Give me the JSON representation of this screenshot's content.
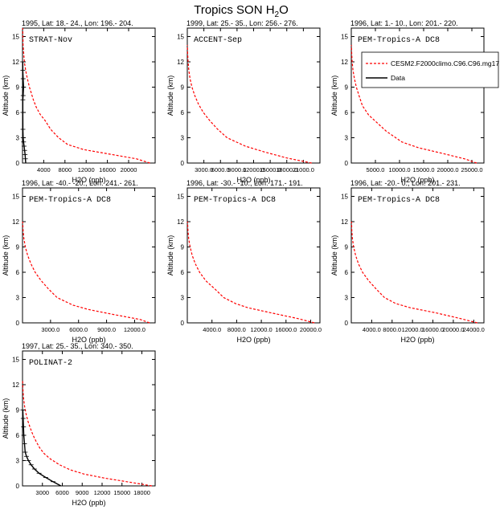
{
  "title": "Tropics SON H",
  "title_sub": "2",
  "title_tail": "O",
  "colors": {
    "model": "#ff0000",
    "obs": "#000000",
    "axis": "#000000"
  },
  "legend": {
    "model": "CESM2.F2000climo.C96.C96.mg17",
    "obs": "Data"
  },
  "chart_data": [
    {
      "type": "line",
      "header": "1995, Lat: 18.- 24., Lon: 196.- 204.",
      "campaign": "STRAT-Nov",
      "xlabel": "H2O (ppb)",
      "ylabel": "Altitude (km)",
      "xlim": [
        0,
        25000
      ],
      "ylim": [
        0,
        16
      ],
      "xticks": [
        4000,
        8000,
        12000,
        16000,
        20000
      ],
      "xtick_labels": [
        "4000",
        "8000",
        "12000",
        "16000",
        "20000"
      ],
      "yticks": [
        0,
        3,
        6,
        9,
        12,
        15
      ],
      "series": [
        {
          "name": "CESM2.F2000climo.C96.C96.mg17",
          "x": [
            24000,
            21500,
            16000,
            11500,
            8500,
            6800,
            5300,
            4300,
            3300,
            2600,
            2050,
            1650,
            1300,
            1000,
            740,
            540,
            400,
            280,
            160,
            110,
            90,
            60,
            40
          ],
          "y": [
            0,
            0.5,
            1.1,
            1.6,
            2.2,
            3.0,
            4.0,
            5.0,
            5.8,
            6.6,
            7.5,
            8.3,
            9.0,
            9.8,
            10.5,
            11.2,
            11.8,
            12.6,
            13.5,
            14.0,
            14.8,
            15.5,
            16
          ]
        },
        {
          "name": "Data",
          "x": [
            600,
            550,
            480,
            400,
            300,
            200,
            120,
            80,
            60,
            60,
            120,
            200,
            120,
            60,
            40
          ],
          "y": [
            0,
            0.5,
            1.0,
            1.5,
            2.0,
            2.5,
            3.0,
            4.0,
            6.0,
            7.5,
            8.0,
            9.0,
            10.0,
            11.0,
            12.0
          ]
        }
      ]
    },
    {
      "type": "line",
      "header": "1999, Lat: 25.- 35., Lon: 256.- 276.",
      "campaign": "ACCENT-Sep",
      "xlabel": "H2O (ppb)",
      "ylabel": "Altitude (km)",
      "xlim": [
        0,
        24000
      ],
      "ylim": [
        0,
        16
      ],
      "xticks": [
        3000,
        6000,
        9000,
        12000,
        15000,
        18000,
        21000
      ],
      "xtick_labels": [
        "3000.0",
        "6000.0",
        "9000.0",
        "12000.0",
        "15000.0",
        "18000.0",
        "21000.0"
      ],
      "yticks": [
        0,
        3,
        6,
        9,
        12,
        15
      ],
      "series": [
        {
          "name": "CESM2.F2000climo.C96.C96.mg17",
          "x": [
            22500,
            18000,
            14000,
            10500,
            7200,
            5500,
            4100,
            2900,
            2000,
            1350,
            850,
            500,
            280,
            150,
            60,
            20
          ],
          "y": [
            0,
            0.6,
            1.3,
            2.0,
            3.0,
            4.0,
            5.0,
            6.0,
            7.0,
            8.0,
            9.0,
            10.0,
            11.0,
            12.0,
            13.0,
            14.0
          ]
        }
      ]
    },
    {
      "type": "line",
      "header": "1996, Lat: 1.- 10., Lon: 201.- 220.",
      "campaign": "PEM-Tropics-A DC8",
      "xlabel": "H2O (ppb)",
      "ylabel": "Altitude (km)",
      "xlim": [
        0,
        27500
      ],
      "ylim": [
        0,
        16
      ],
      "xticks": [
        5000,
        10000,
        15000,
        20000,
        25000
      ],
      "xtick_labels": [
        "5000.0",
        "10000.0",
        "15000.0",
        "20000.0",
        "25000.0"
      ],
      "yticks": [
        0,
        3,
        6,
        9,
        12,
        15
      ],
      "series": [
        {
          "name": "CESM2.F2000climo.C96.C96.mg17",
          "x": [
            26000,
            23500,
            18500,
            14000,
            10500,
            8700,
            7200,
            5300,
            3600,
            2300,
            1600,
            1050,
            650,
            350,
            180,
            90,
            40
          ],
          "y": [
            0,
            0.5,
            1.2,
            1.8,
            2.5,
            3.2,
            3.8,
            4.8,
            5.7,
            6.8,
            8.0,
            9.0,
            10.0,
            11.0,
            12.0,
            13.0,
            14.0
          ]
        }
      ]
    },
    {
      "type": "line",
      "header": "1996, Lat: -40.- -20., Lon: 241.- 261.",
      "campaign": "PEM-Tropics-A DC8",
      "xlabel": "H2O (ppb)",
      "ylabel": "Altitude (km)",
      "xlim": [
        0,
        14200
      ],
      "ylim": [
        0,
        16
      ],
      "xticks": [
        3000,
        6000,
        9000,
        12000
      ],
      "xtick_labels": [
        "3000.0",
        "6000.0",
        "9000.0",
        "12000.0"
      ],
      "yticks": [
        0,
        3,
        6,
        9,
        12,
        15
      ],
      "series": [
        {
          "name": "CESM2.F2000climo.C96.C96.mg17",
          "x": [
            13600,
            12600,
            9700,
            7000,
            5400,
            3700,
            2800,
            2000,
            1350,
            900,
            550,
            300,
            150,
            60,
            20
          ],
          "y": [
            0,
            0.4,
            1.0,
            1.6,
            2.1,
            3.0,
            4.0,
            5.0,
            6.0,
            7.0,
            8.0,
            9.0,
            10.0,
            11.0,
            12.0
          ]
        }
      ]
    },
    {
      "type": "line",
      "header": "1996, Lat: -30.- -10., Lon: 171.- 191.",
      "campaign": "PEM-Tropics-A DC8",
      "xlabel": "H2O (ppb)",
      "ylabel": "Altitude (km)",
      "xlim": [
        0,
        21500
      ],
      "ylim": [
        0,
        16
      ],
      "xticks": [
        4000,
        8000,
        12000,
        16000,
        20000
      ],
      "xtick_labels": [
        "4000.0",
        "8000.0",
        "12000.0",
        "16000.0",
        "20000.0"
      ],
      "yticks": [
        0,
        3,
        6,
        9,
        12,
        15
      ],
      "series": [
        {
          "name": "CESM2.F2000climo.C96.C96.mg17",
          "x": [
            20600,
            18000,
            13500,
            9800,
            7800,
            5900,
            4500,
            3000,
            2000,
            1300,
            800,
            450,
            220,
            100,
            40
          ],
          "y": [
            0,
            0.5,
            1.2,
            1.8,
            2.3,
            3.0,
            4.0,
            5.0,
            6.0,
            7.0,
            8.0,
            9.0,
            10.0,
            11.0,
            12.0
          ]
        }
      ]
    },
    {
      "type": "line",
      "header": "1996, Lat: -20.- 0., Lon: 201.- 231.",
      "campaign": "PEM-Tropics-A DC8",
      "xlabel": "H2O (ppb)",
      "ylabel": "Altitude (km)",
      "xlim": [
        0,
        26000
      ],
      "ylim": [
        0,
        16
      ],
      "xticks": [
        4000,
        8000,
        12000,
        16000,
        20000,
        24000
      ],
      "xtick_labels": [
        "4000.0",
        "8000.0",
        "12000.0",
        "16000.0",
        "20000.0",
        "24000.0"
      ],
      "yticks": [
        0,
        3,
        6,
        9,
        12,
        15
      ],
      "series": [
        {
          "name": "CESM2.F2000climo.C96.C96.mg17",
          "x": [
            24700,
            21500,
            16500,
            11500,
            8700,
            6500,
            4900,
            3400,
            2200,
            1400,
            850,
            450,
            220,
            100,
            40
          ],
          "y": [
            0,
            0.5,
            1.2,
            1.8,
            2.3,
            3.0,
            4.0,
            5.0,
            6.0,
            7.0,
            8.0,
            9.0,
            10.0,
            11.0,
            12.0
          ]
        }
      ]
    },
    {
      "type": "line",
      "header": "1997, Lat: 25.- 35., Lon: 340.- 350.",
      "campaign": "POLINAT-2",
      "xlabel": "H2O (ppb)",
      "ylabel": "Altitude (km)",
      "xlim": [
        0,
        20000
      ],
      "ylim": [
        0,
        16
      ],
      "xticks": [
        3000,
        6000,
        9000,
        12000,
        15000,
        18000
      ],
      "xtick_labels": [
        "3000",
        "6000",
        "9000",
        "12000",
        "15000",
        "18000"
      ],
      "yticks": [
        0,
        3,
        6,
        9,
        12,
        15
      ],
      "series": [
        {
          "name": "CESM2.F2000climo.C96.C96.mg17",
          "x": [
            19500,
            16500,
            12500,
            9300,
            7200,
            5600,
            4200,
            3300,
            2600,
            2100,
            1600,
            1200,
            850,
            550,
            300,
            150,
            60,
            20
          ],
          "y": [
            0,
            0.4,
            0.9,
            1.4,
            1.9,
            2.5,
            3.2,
            3.8,
            4.5,
            5.2,
            6.0,
            6.8,
            7.6,
            8.5,
            9.5,
            10.5,
            11.5,
            12.5
          ]
        },
        {
          "name": "Data",
          "x": [
            5800,
            4600,
            3500,
            2500,
            1800,
            1300,
            900,
            600,
            400,
            300,
            200,
            150,
            100,
            50
          ],
          "y": [
            0,
            0.5,
            1.0,
            1.5,
            2.0,
            2.5,
            3.0,
            3.5,
            4.0,
            5.0,
            6.0,
            7.0,
            8.0,
            9.0
          ]
        }
      ]
    }
  ]
}
